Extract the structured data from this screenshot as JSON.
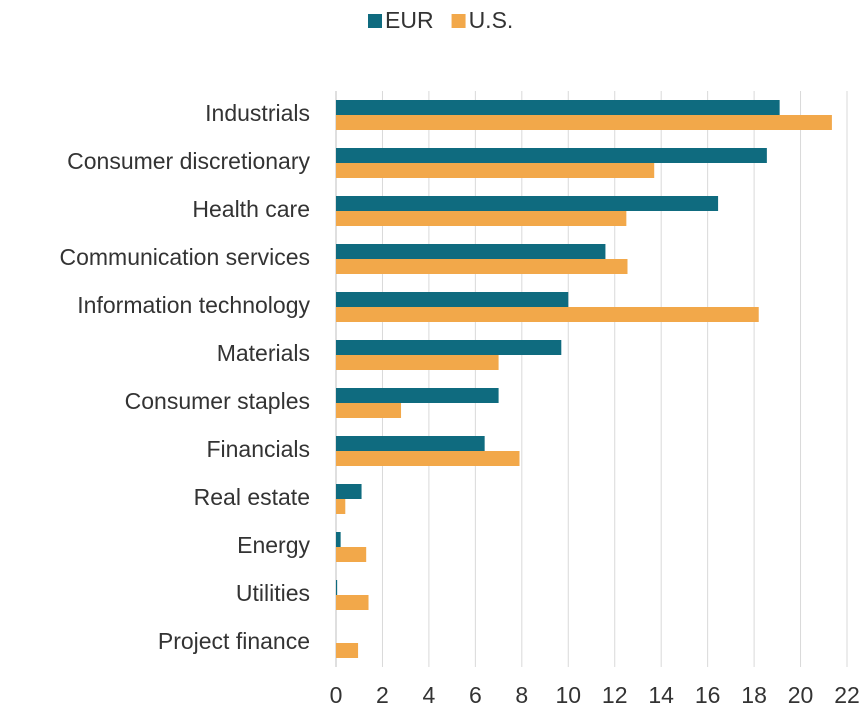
{
  "chart_data": {
    "type": "bar",
    "orientation": "horizontal",
    "categories": [
      "Industrials",
      "Consumer discretionary",
      "Health care",
      "Communication services",
      "Information technology",
      "Materials",
      "Consumer staples",
      "Financials",
      "Real estate",
      "Energy",
      "Utilities",
      "Project finance"
    ],
    "series": [
      {
        "name": "EUR",
        "color": "#0f6b7f",
        "values": [
          19.1,
          18.55,
          16.45,
          11.6,
          10.0,
          9.7,
          7.0,
          6.4,
          1.1,
          0.2,
          0.05,
          0
        ]
      },
      {
        "name": "U.S.",
        "color": "#f2a84a",
        "values": [
          21.35,
          13.7,
          12.5,
          12.55,
          18.2,
          7.0,
          2.8,
          7.9,
          0.4,
          1.3,
          1.4,
          0.95
        ]
      }
    ],
    "xlim": [
      0,
      22
    ],
    "xticks": [
      0,
      2,
      4,
      6,
      8,
      10,
      12,
      14,
      16,
      18,
      20,
      22
    ],
    "grid": true,
    "legend": "top"
  }
}
